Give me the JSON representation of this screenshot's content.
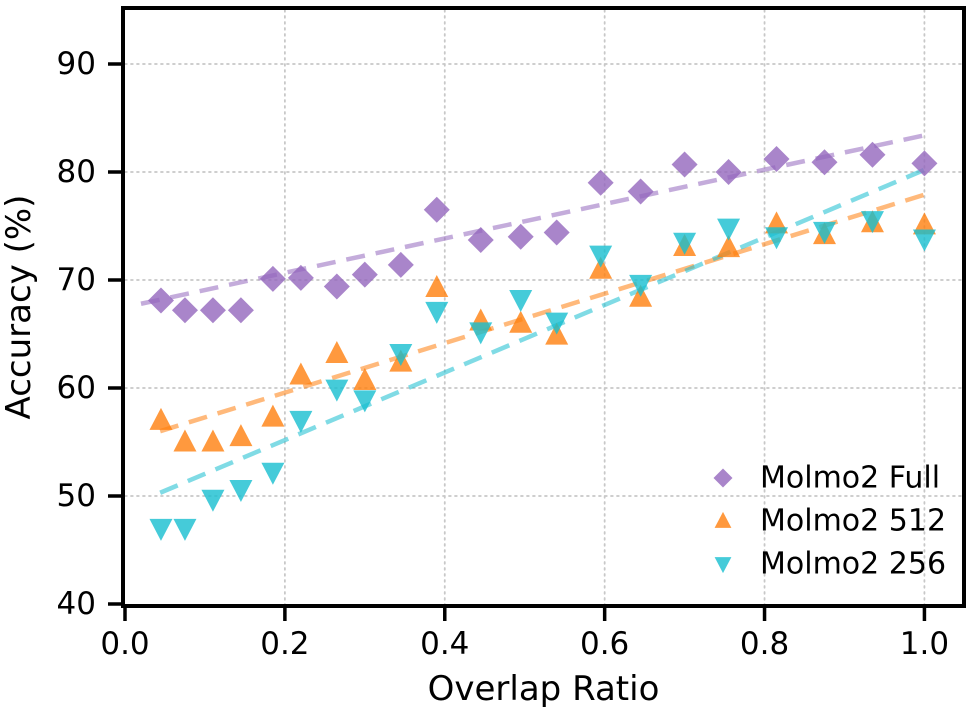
{
  "chart_data": {
    "type": "scatter",
    "title": "",
    "xlabel": "Overlap Ratio",
    "ylabel": "Accuracy (%)",
    "xlim": [
      0.0,
      1.047
    ],
    "ylim": [
      40,
      95
    ],
    "xticks": [
      0.0,
      0.2,
      0.4,
      0.6,
      0.8,
      1.0
    ],
    "xtick_labels": [
      "0.0",
      "0.2",
      "0.4",
      "0.6",
      "0.8",
      "1.0"
    ],
    "yticks": [
      40,
      50,
      60,
      70,
      80,
      90
    ],
    "ytick_labels": [
      "40",
      "50",
      "60",
      "70",
      "80",
      "90"
    ],
    "grid": true,
    "legend_position": "lower-right",
    "x": [
      0.045,
      0.075,
      0.11,
      0.145,
      0.185,
      0.22,
      0.265,
      0.3,
      0.345,
      0.39,
      0.445,
      0.495,
      0.54,
      0.595,
      0.645,
      0.7,
      0.755,
      0.815,
      0.875,
      0.935,
      1.0
    ],
    "series": [
      {
        "name": "Molmo2 Full",
        "marker": "diamond",
        "color": "#9467bd",
        "values": [
          68.1,
          67.2,
          67.2,
          67.2,
          70.1,
          70.2,
          69.4,
          70.5,
          71.4,
          76.5,
          73.7,
          74.0,
          74.4,
          79.0,
          78.2,
          80.7,
          80.0,
          81.2,
          80.9,
          81.6,
          80.8
        ],
        "trend": {
          "x1": 0.02,
          "y1": 67.8,
          "x2": 1.0,
          "y2": 83.4
        }
      },
      {
        "name": "Molmo2 512",
        "marker": "triangle-up",
        "color": "#ff7f0e",
        "values": [
          57.0,
          55.0,
          55.0,
          55.5,
          57.3,
          61.2,
          63.2,
          60.7,
          62.4,
          69.3,
          66.2,
          66.0,
          64.9,
          71.0,
          68.4,
          73.1,
          73.0,
          75.2,
          74.2,
          75.3,
          75.1
        ],
        "trend": {
          "x1": 0.044,
          "y1": 56.0,
          "x2": 1.0,
          "y2": 77.9
        }
      },
      {
        "name": "Molmo2 256",
        "marker": "triangle-down",
        "color": "#17becf",
        "values": [
          47.0,
          47.0,
          49.7,
          50.6,
          52.2,
          57.0,
          59.9,
          58.9,
          63.2,
          67.1,
          65.2,
          68.2,
          66.1,
          72.3,
          69.6,
          73.5,
          74.8,
          74.0,
          74.5,
          75.5,
          73.8
        ],
        "trend": {
          "x1": 0.044,
          "y1": 50.3,
          "x2": 1.0,
          "y2": 80.2
        }
      }
    ],
    "style": {
      "marker_opacity": 0.8,
      "trend_opacity": 0.55,
      "grid_color": "#c8c8c8",
      "axis_color": "#000000",
      "text_color": "#000000",
      "background": "#ffffff"
    }
  }
}
